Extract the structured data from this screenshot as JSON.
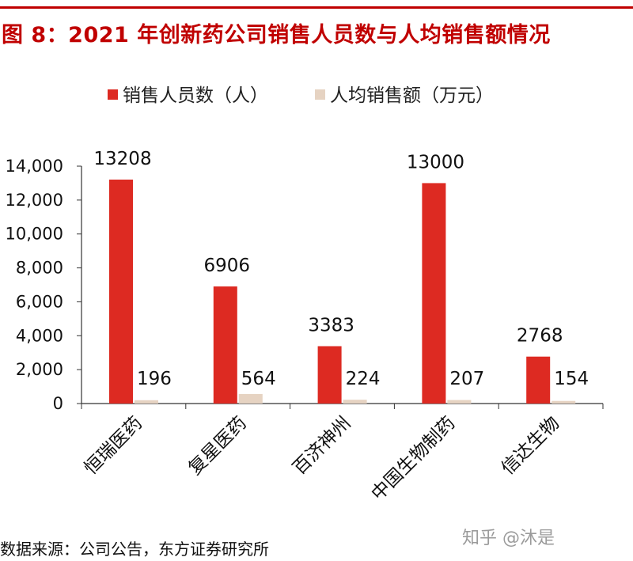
{
  "title": "图 8：2021 年创新药公司销售人员数与人均销售额情况",
  "source": "数据来源：公司公告，东方证券研究所",
  "watermark": "知乎 @沐是",
  "colors": {
    "accent": "#c00000",
    "series_1": "#dd2a22",
    "series_2": "#e6d3c2",
    "axis": "#333333"
  },
  "chart_data": {
    "type": "bar",
    "title": "图 8：2021 年创新药公司销售人员数与人均销售额情况",
    "categories": [
      "恒瑞医药",
      "复星医药",
      "百济神州",
      "中国生物制药",
      "信达生物"
    ],
    "series": [
      {
        "name": "销售人员数（人）",
        "values": [
          13208,
          6906,
          3383,
          13000,
          2768
        ]
      },
      {
        "name": "人均销售额（万元）",
        "values": [
          196,
          564,
          224,
          207,
          154
        ]
      }
    ],
    "data_labels": {
      "series_1": [
        "13208",
        "6906",
        "3383",
        "13000",
        "2768"
      ],
      "series_2": [
        "196",
        "564",
        "224",
        "207",
        "154"
      ]
    },
    "y_ticks": [
      "0",
      "2,000",
      "4,000",
      "6,000",
      "8,000",
      "10,000",
      "12,000",
      "14,000"
    ],
    "ylim": [
      0,
      14000
    ],
    "xlabel": "",
    "ylabel": "",
    "grid": false,
    "legend_position": "top"
  }
}
